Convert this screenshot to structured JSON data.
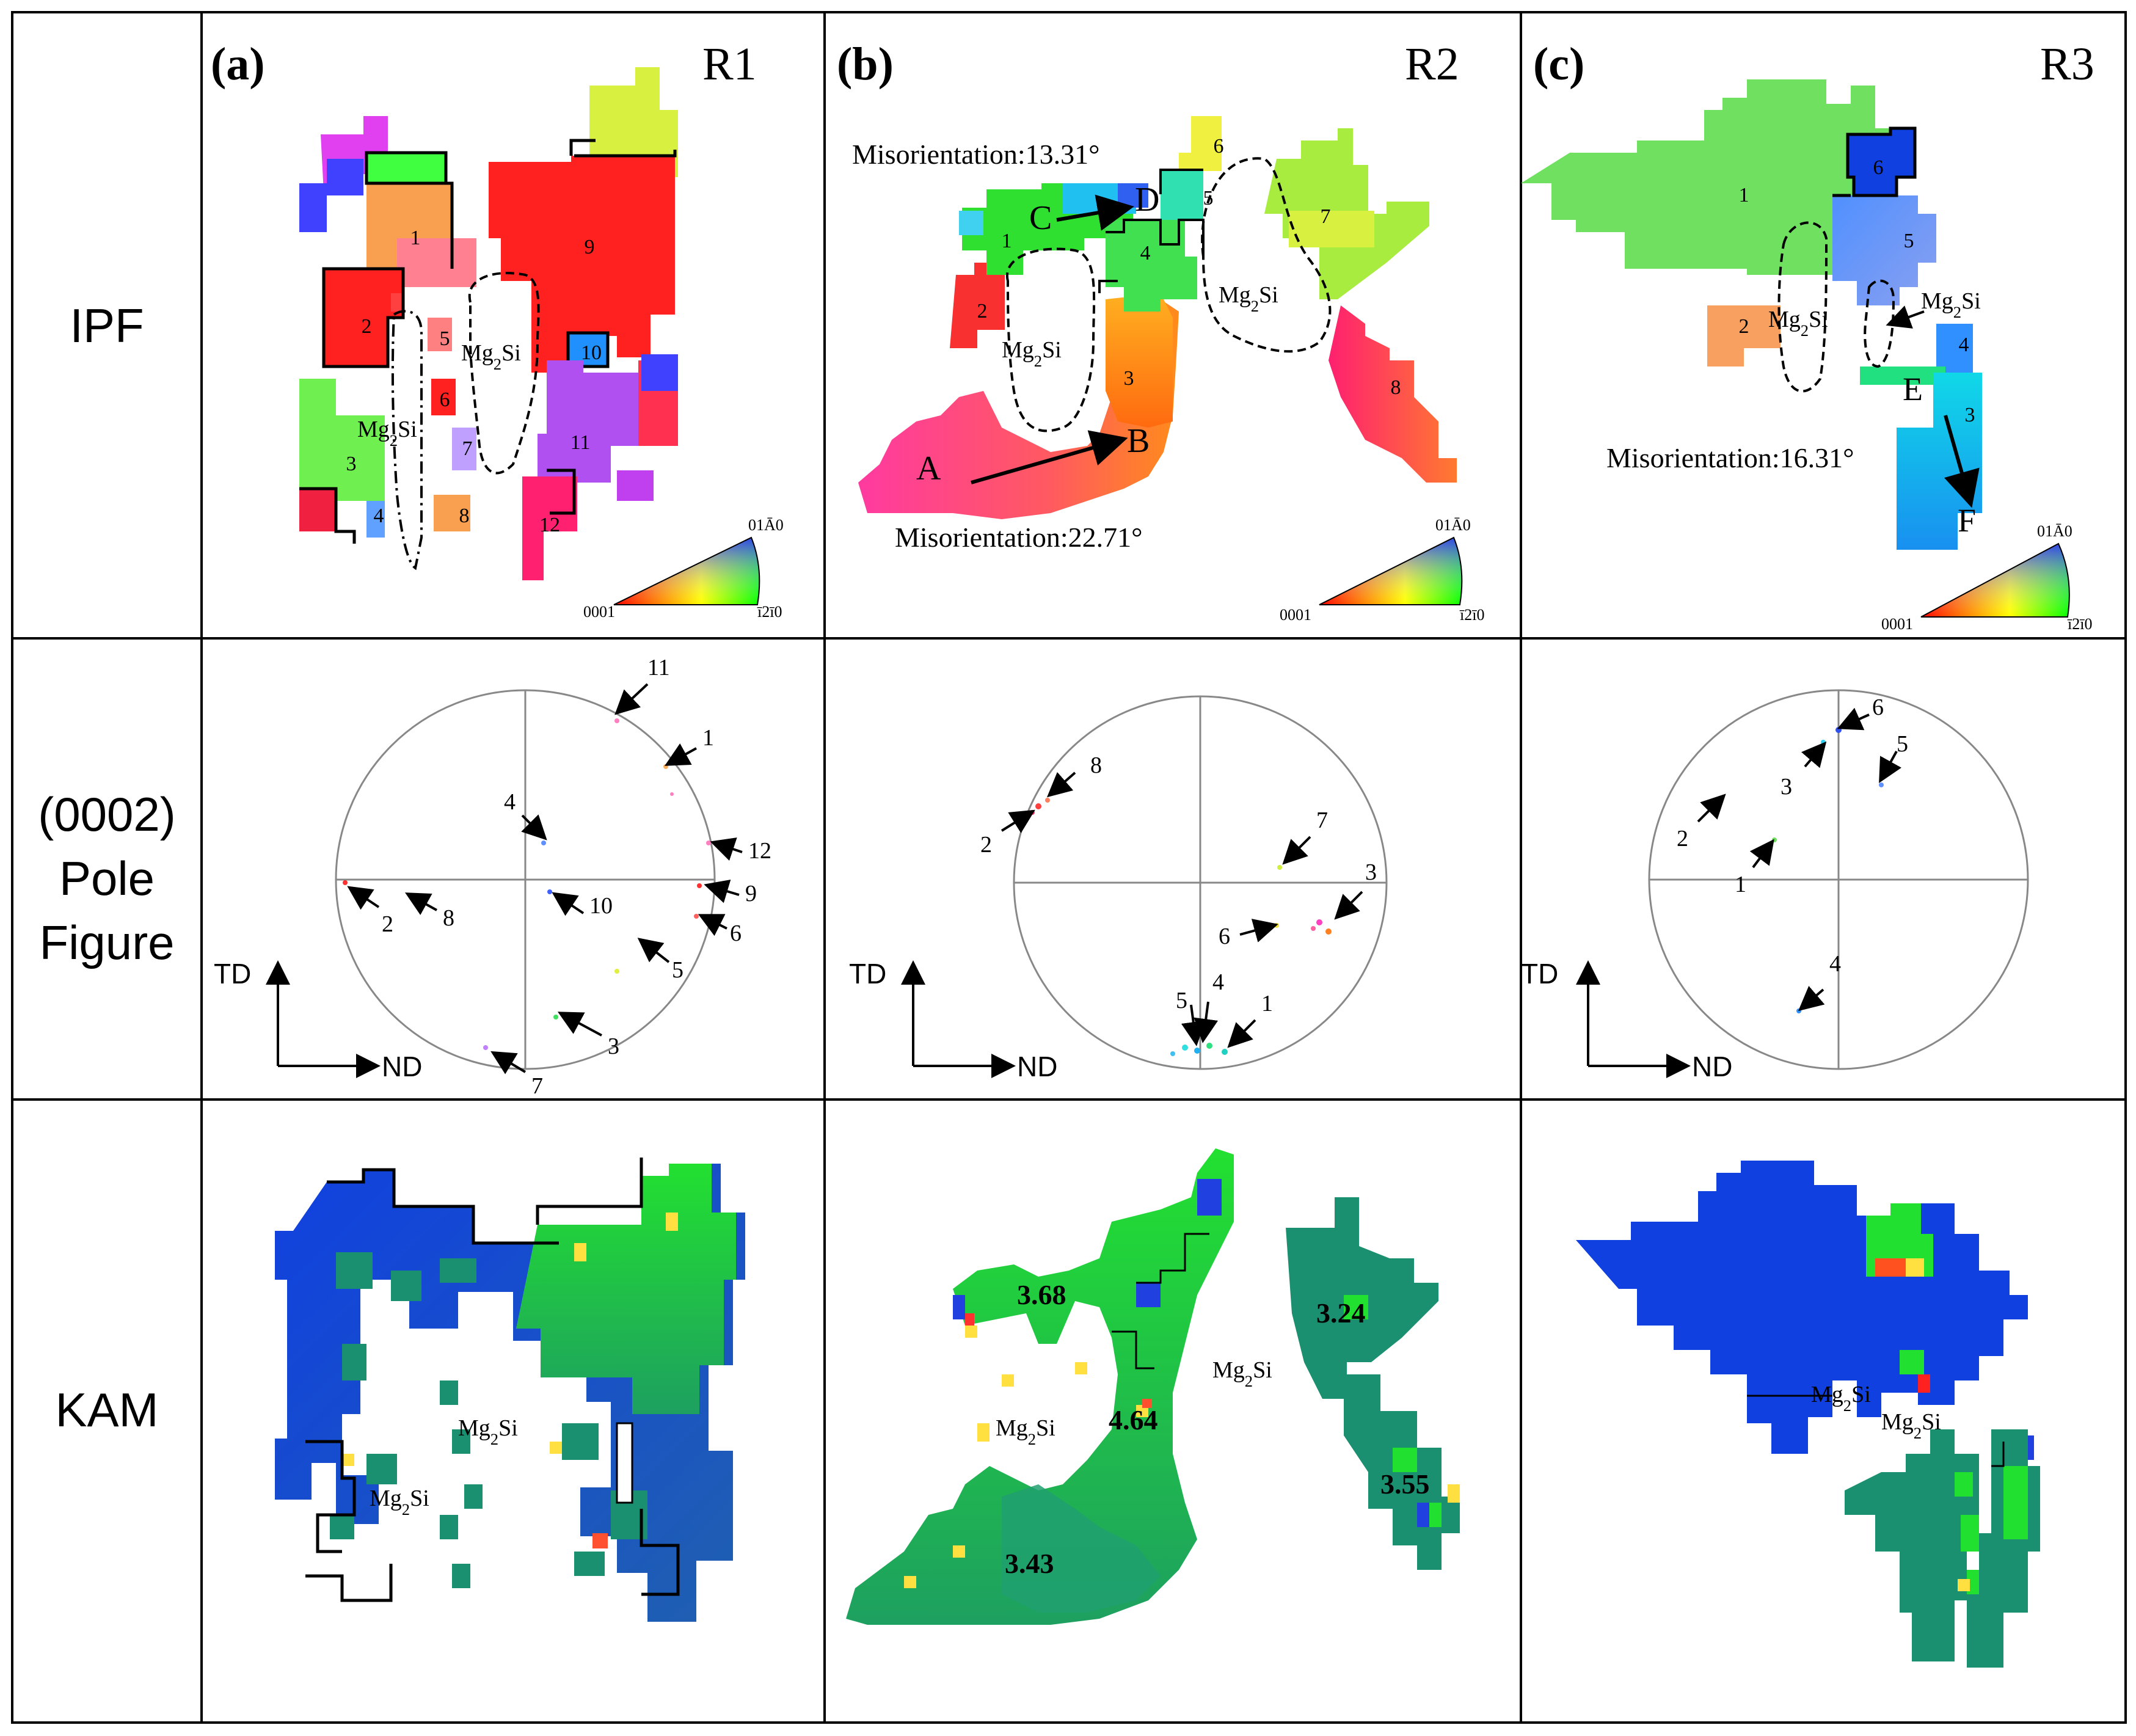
{
  "rows": {
    "ipf": {
      "label": "IPF"
    },
    "pole": {
      "label_lines": [
        "(0002)",
        "Pole",
        "Figure"
      ],
      "axis_td": "TD",
      "axis_nd": "ND"
    },
    "kam": {
      "label": "KAM"
    }
  },
  "panels": [
    {
      "letter": "(a)",
      "region": "R1",
      "grain_numbers": [
        "1",
        "2",
        "3",
        "4",
        "5",
        "6",
        "7",
        "8",
        "9",
        "10",
        "11",
        "12"
      ],
      "mg2si_labels": [
        "Mg2Si",
        "Mg2Si"
      ],
      "legend": {
        "origin": "0001",
        "top": "01Ā0",
        "right": "ī2ī0"
      },
      "pole_labels": [
        "11",
        "1",
        "4",
        "12",
        "9",
        "2",
        "8",
        "10",
        "6",
        "5",
        "3",
        "7"
      ],
      "kam_labels": [
        "Mg2Si",
        "Mg2Si"
      ]
    },
    {
      "letter": "(b)",
      "region": "R2",
      "grain_numbers": [
        "1",
        "2",
        "3",
        "4",
        "5",
        "6",
        "7",
        "8"
      ],
      "mg2si_labels": [
        "Mg2Si",
        "Mg2Si"
      ],
      "points": [
        "A",
        "B",
        "C",
        "D"
      ],
      "misorientations": [
        "Misorientation:13.31°",
        "Misorientation:22.71°"
      ],
      "legend": {
        "origin": "0001",
        "top": "01Ā0",
        "right": "ī2ī0"
      },
      "pole_labels": [
        "8",
        "2",
        "7",
        "3",
        "6",
        "5",
        "4",
        "1"
      ],
      "kam_values": [
        "3.68",
        "3.24",
        "4.64",
        "3.55",
        "3.43"
      ],
      "kam_labels": [
        "Mg2Si",
        "Mg2Si"
      ]
    },
    {
      "letter": "(c)",
      "region": "R3",
      "grain_numbers": [
        "1",
        "2",
        "3",
        "4",
        "5",
        "6"
      ],
      "mg2si_labels": [
        "Mg2Si",
        "Mg2Si"
      ],
      "points": [
        "E",
        "F"
      ],
      "misorientations": [
        "Misorientation:16.31°"
      ],
      "legend": {
        "origin": "0001",
        "top": "01Ā0",
        "right": "ī2ī0"
      },
      "pole_labels": [
        "6",
        "5",
        "3",
        "2",
        "1",
        "4"
      ],
      "kam_labels": [
        "Mg2Si",
        "Mg2Si"
      ]
    }
  ]
}
